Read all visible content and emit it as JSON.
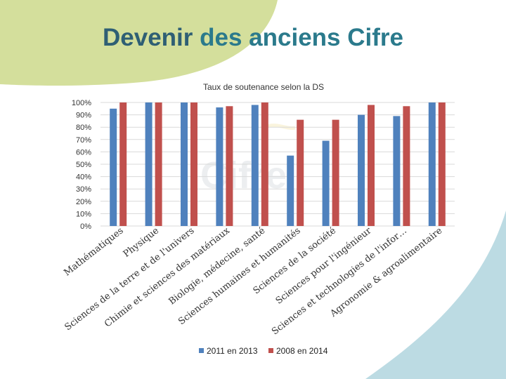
{
  "slide": {
    "title_part1": "Devenir",
    "title_part2": "des anciens Cifre",
    "colors": {
      "top_shape": "#d4df9c",
      "bottom_shape": "#bcdbe3",
      "title_dark": "#2f5f74",
      "title_teal": "#2b7a8c"
    }
  },
  "chart_data": {
    "type": "bar",
    "title": "Taux de soutenance selon la DS",
    "xlabel": "",
    "ylabel": "",
    "ylim": [
      0,
      100
    ],
    "y_ticks": [
      "0%",
      "10%",
      "20%",
      "30%",
      "40%",
      "50%",
      "60%",
      "70%",
      "80%",
      "90%",
      "100%"
    ],
    "grid": true,
    "legend_position": "bottom",
    "categories": [
      "Mathématiques",
      "Physique",
      "Sciences de la terre et de l'univers",
      "Chimie et sciences des matériaux",
      "Biologie, médecine, santé",
      "Sciences humaines et humanités",
      "Sciences de la société",
      "Sciences pour l'ingénieur",
      "Sciences et technologies de l'infor…",
      "Agronomie & agroalimentaire"
    ],
    "series": [
      {
        "name": "2011 en 2013",
        "color": "#4f81bd",
        "values": [
          95,
          100,
          100,
          96,
          98,
          57,
          69,
          90,
          89,
          100
        ]
      },
      {
        "name": "2008 en 2014",
        "color": "#c0504d",
        "values": [
          100,
          100,
          100,
          97,
          100,
          86,
          86,
          98,
          97,
          100
        ]
      }
    ]
  }
}
